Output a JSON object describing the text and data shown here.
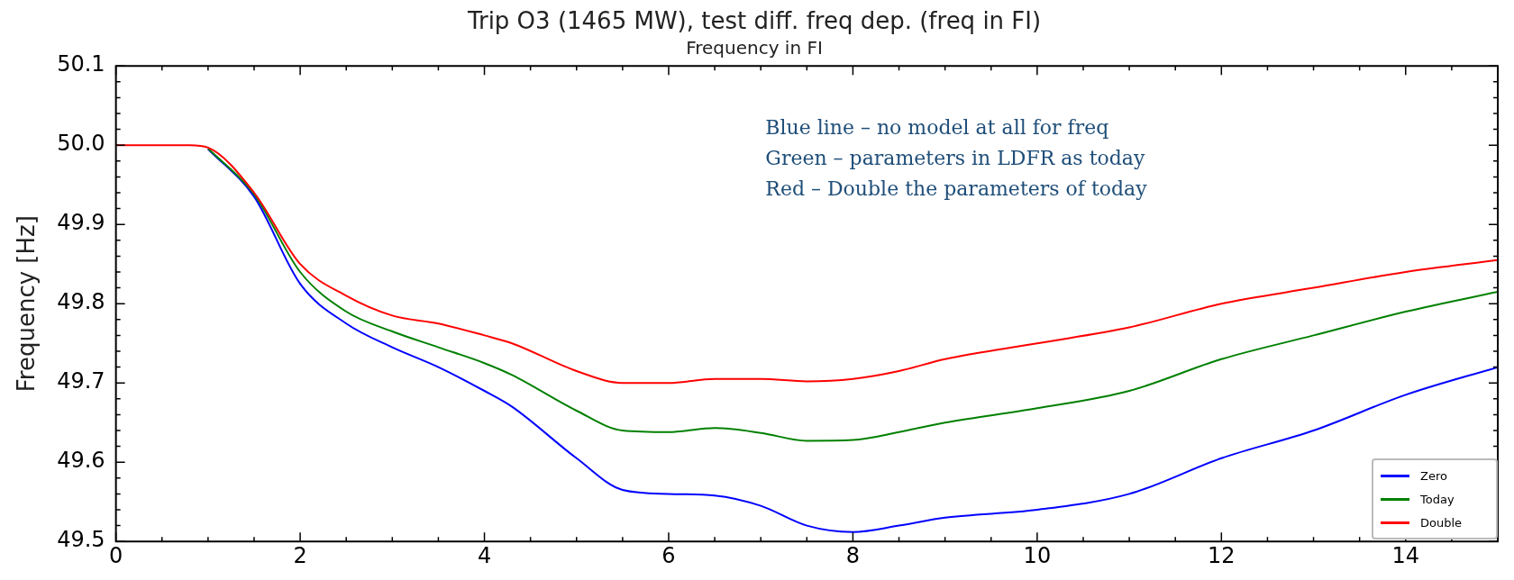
{
  "chart_data": {
    "type": "line",
    "title": "Trip O3 (1465 MW), test diff. freq dep. (freq in FI)",
    "subtitle": "Frequency in FI",
    "ylabel": "Frequency [Hz]",
    "x": [
      0,
      0.5,
      0.8,
      1,
      1.5,
      2,
      2.5,
      3,
      3.5,
      4,
      4.3,
      5,
      5.5,
      6,
      6.5,
      7,
      7.5,
      8,
      8.5,
      9,
      10,
      11,
      12,
      13,
      14,
      15
    ],
    "series": [
      {
        "name": "Zero",
        "color": "#0000ff",
        "values": [
          null,
          null,
          null,
          49.995,
          49.935,
          49.825,
          49.775,
          49.745,
          49.72,
          49.69,
          49.67,
          49.605,
          49.565,
          49.56,
          49.558,
          49.545,
          49.52,
          49.512,
          49.52,
          49.53,
          49.54,
          49.56,
          49.605,
          49.64,
          49.685,
          49.72
        ]
      },
      {
        "name": "Today",
        "color": "#008000",
        "values": [
          null,
          null,
          null,
          49.996,
          49.938,
          49.84,
          49.79,
          49.765,
          49.745,
          49.725,
          49.71,
          49.665,
          49.64,
          49.638,
          49.643,
          49.637,
          49.627,
          49.628,
          49.638,
          49.65,
          49.668,
          49.69,
          49.73,
          49.76,
          49.79,
          49.815
        ]
      },
      {
        "name": "Double",
        "color": "#ff0000",
        "values": [
          50.0,
          50.0,
          50.0,
          49.997,
          49.94,
          49.85,
          49.81,
          49.785,
          49.775,
          49.76,
          49.75,
          49.715,
          49.7,
          49.7,
          49.705,
          49.705,
          49.702,
          49.705,
          49.715,
          49.73,
          49.75,
          49.77,
          49.8,
          49.82,
          49.84,
          49.855
        ]
      }
    ],
    "xlim": [
      0,
      15
    ],
    "xticks": [
      0,
      2,
      4,
      6,
      8,
      10,
      12,
      14
    ],
    "ylim": [
      49.5,
      50.1
    ],
    "yticks": [
      49.5,
      49.6,
      49.7,
      49.8,
      49.9,
      {
        "value": 50,
        "label": "50.0"
      },
      50.1
    ],
    "grid": false,
    "legend": "bottom right",
    "marker": "none",
    "line_style": "solid",
    "annotations": [
      "Blue line – no model at all for freq",
      "Green – parameters in LDFR as today",
      "Red – Double the parameters of today"
    ]
  }
}
